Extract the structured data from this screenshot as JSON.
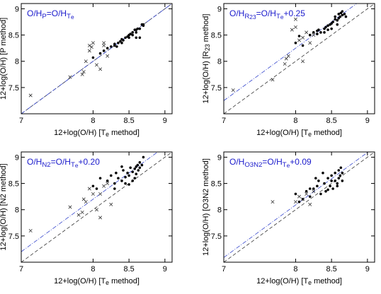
{
  "chart_data": [
    {
      "type": "scatter",
      "annotation": [
        {
          "text": "O/H"
        },
        {
          "text": "P",
          "baseline": "sub"
        },
        {
          "text": "=O/H"
        },
        {
          "text": "T",
          "baseline": "sub"
        },
        {
          "text": "e",
          "baseline": "subsub"
        }
      ],
      "xlabel": [
        {
          "text": "12+log(O/H) [T"
        },
        {
          "text": "e",
          "baseline": "sub"
        },
        {
          "text": " method]"
        }
      ],
      "ylabel": [
        {
          "text": "12+log(O/H) [P method]"
        }
      ],
      "xlim": [
        7,
        9.1
      ],
      "ylim": [
        7,
        9.1
      ],
      "xticks": [
        7,
        8,
        8.5,
        9
      ],
      "yticks": [
        7.5,
        8,
        8.5,
        9
      ],
      "lines": [
        {
          "intercept": 0,
          "style": "dashed",
          "color": "#333333"
        },
        {
          "intercept": 0,
          "style": "dashdot",
          "color": "#3344cc"
        }
      ],
      "series": [
        {
          "marker": "dot",
          "color": "#000000",
          "x": [
            8.0,
            8.1,
            8.15,
            8.2,
            8.25,
            8.3,
            8.3,
            8.35,
            8.38,
            8.4,
            8.42,
            8.45,
            8.48,
            8.5,
            8.52,
            8.55,
            8.55,
            8.58,
            8.6,
            8.6,
            8.62,
            8.65,
            8.65,
            8.68,
            8.7,
            8.5,
            8.4,
            8.33,
            8.6,
            8.7
          ],
          "values": [
            8.07,
            8.15,
            8.2,
            8.25,
            8.28,
            8.3,
            8.33,
            8.35,
            8.38,
            8.42,
            8.4,
            8.45,
            8.47,
            8.5,
            8.52,
            8.55,
            8.5,
            8.6,
            8.6,
            8.55,
            8.62,
            8.62,
            8.45,
            8.7,
            8.7,
            8.45,
            8.35,
            8.28,
            8.45,
            8.68
          ]
        },
        {
          "marker": "cross",
          "color": "#333333",
          "x": [
            7.13,
            7.68,
            7.85,
            7.87,
            7.9,
            7.95,
            7.95,
            8.0,
            8.05,
            8.1,
            8.15,
            8.2,
            7.98,
            8.15
          ],
          "values": [
            7.35,
            7.7,
            7.75,
            7.8,
            8.0,
            8.2,
            8.3,
            8.35,
            7.93,
            7.85,
            8.35,
            8.1,
            8.27,
            8.3
          ]
        }
      ]
    },
    {
      "type": "scatter",
      "annotation": [
        {
          "text": "O/H"
        },
        {
          "text": "R",
          "baseline": "sub"
        },
        {
          "text": "23",
          "baseline": "subsub"
        },
        {
          "text": "=O/H"
        },
        {
          "text": "T",
          "baseline": "sub"
        },
        {
          "text": "e",
          "baseline": "subsub"
        },
        {
          "text": "+0.25"
        }
      ],
      "xlabel": [
        {
          "text": "12+log(O/H) [T"
        },
        {
          "text": "e",
          "baseline": "sub"
        },
        {
          "text": " method]"
        }
      ],
      "ylabel": [
        {
          "text": "12+log(O/H) [R"
        },
        {
          "text": "23",
          "baseline": "sub"
        },
        {
          "text": " method]"
        }
      ],
      "xlim": [
        7,
        9.1
      ],
      "ylim": [
        7,
        9.1
      ],
      "xticks": [
        7,
        8,
        8.5,
        9
      ],
      "yticks": [
        7.5,
        8,
        8.5,
        9
      ],
      "lines": [
        {
          "intercept": 0,
          "style": "dashed",
          "color": "#333333"
        },
        {
          "intercept": 0.25,
          "style": "dashdot",
          "color": "#3344cc"
        }
      ],
      "series": [
        {
          "marker": "dot",
          "color": "#000000",
          "x": [
            8.0,
            8.05,
            8.1,
            8.2,
            8.25,
            8.3,
            8.32,
            8.35,
            8.4,
            8.42,
            8.45,
            8.48,
            8.5,
            8.52,
            8.55,
            8.55,
            8.58,
            8.6,
            8.6,
            8.62,
            8.63,
            8.65,
            8.65,
            8.68,
            8.7,
            8.4,
            8.5,
            8.3,
            8.58,
            8.45
          ],
          "values": [
            8.35,
            8.48,
            8.3,
            8.5,
            8.55,
            8.58,
            8.6,
            8.55,
            8.62,
            8.65,
            8.6,
            8.7,
            8.72,
            8.75,
            8.8,
            8.85,
            8.78,
            8.82,
            8.9,
            8.85,
            8.92,
            8.88,
            8.95,
            8.9,
            8.85,
            8.55,
            8.62,
            8.52,
            8.7,
            8.68
          ]
        },
        {
          "marker": "cross",
          "color": "#333333",
          "x": [
            7.13,
            7.68,
            7.85,
            7.87,
            7.9,
            7.95,
            8.0,
            8.05,
            8.1,
            8.15,
            8.2,
            8.0,
            8.1,
            8.25
          ],
          "values": [
            7.45,
            7.65,
            7.95,
            8.05,
            8.1,
            8.6,
            8.65,
            8.4,
            8.0,
            8.55,
            8.35,
            8.8,
            8.45,
            8.5
          ]
        }
      ]
    },
    {
      "type": "scatter",
      "annotation": [
        {
          "text": "O/H"
        },
        {
          "text": "N2",
          "baseline": "sub"
        },
        {
          "text": "=O/H"
        },
        {
          "text": "T",
          "baseline": "sub"
        },
        {
          "text": "e",
          "baseline": "subsub"
        },
        {
          "text": "+0.20"
        }
      ],
      "xlabel": [
        {
          "text": "12+log(O/H) [T"
        },
        {
          "text": "e",
          "baseline": "sub"
        },
        {
          "text": " method]"
        }
      ],
      "ylabel": [
        {
          "text": "12+log(O/H) [N2 method]"
        }
      ],
      "xlim": [
        7,
        9.1
      ],
      "ylim": [
        7,
        9.1
      ],
      "xticks": [
        7,
        8,
        8.5,
        9
      ],
      "yticks": [
        7.5,
        8,
        8.5,
        9
      ],
      "lines": [
        {
          "intercept": 0,
          "style": "dashed",
          "color": "#333333"
        },
        {
          "intercept": 0.2,
          "style": "dashdot",
          "color": "#3344cc"
        }
      ],
      "series": [
        {
          "marker": "dot",
          "color": "#000000",
          "x": [
            8.0,
            8.05,
            8.1,
            8.2,
            8.25,
            8.3,
            8.32,
            8.35,
            8.4,
            8.42,
            8.45,
            8.48,
            8.5,
            8.52,
            8.55,
            8.55,
            8.58,
            8.6,
            8.6,
            8.62,
            8.63,
            8.65,
            8.65,
            8.68,
            8.7,
            8.4,
            8.5,
            8.3,
            8.58,
            8.45
          ],
          "values": [
            8.45,
            8.4,
            8.6,
            8.55,
            8.65,
            8.5,
            8.7,
            8.6,
            8.55,
            8.75,
            8.62,
            8.7,
            8.65,
            8.8,
            8.72,
            8.55,
            8.78,
            8.82,
            8.68,
            8.85,
            8.75,
            8.9,
            8.8,
            8.85,
            9.0,
            8.82,
            8.48,
            8.4,
            8.6,
            8.5
          ]
        },
        {
          "marker": "cross",
          "color": "#333333",
          "x": [
            7.13,
            7.68,
            7.85,
            7.87,
            7.9,
            7.95,
            8.0,
            8.05,
            8.1,
            8.15,
            8.2,
            7.8,
            8.1,
            8.25
          ],
          "values": [
            7.6,
            8.05,
            7.95,
            8.2,
            8.15,
            8.4,
            8.3,
            8.0,
            7.85,
            8.45,
            8.5,
            7.9,
            8.3,
            8.1
          ]
        }
      ]
    },
    {
      "type": "scatter",
      "annotation": [
        {
          "text": "O/H"
        },
        {
          "text": "O3N2",
          "baseline": "sub"
        },
        {
          "text": "=O/H"
        },
        {
          "text": "T",
          "baseline": "sub"
        },
        {
          "text": "e",
          "baseline": "subsub"
        },
        {
          "text": "+0.09"
        }
      ],
      "xlabel": [
        {
          "text": "12+log(O/H) [T"
        },
        {
          "text": "e",
          "baseline": "sub"
        },
        {
          "text": " method]"
        }
      ],
      "ylabel": [
        {
          "text": "12+log(O/H) [O3N2 method]"
        }
      ],
      "xlim": [
        7,
        9.1
      ],
      "ylim": [
        7,
        9.1
      ],
      "xticks": [
        7,
        8,
        8.5,
        9
      ],
      "yticks": [
        7.5,
        8,
        8.5,
        9
      ],
      "lines": [
        {
          "intercept": 0,
          "style": "dashed",
          "color": "#333333"
        },
        {
          "intercept": 0.09,
          "style": "dashdot",
          "color": "#3344cc"
        }
      ],
      "series": [
        {
          "marker": "dot",
          "color": "#000000",
          "x": [
            8.0,
            8.05,
            8.1,
            8.15,
            8.2,
            8.25,
            8.3,
            8.32,
            8.35,
            8.4,
            8.42,
            8.45,
            8.48,
            8.5,
            8.52,
            8.55,
            8.55,
            8.58,
            8.6,
            8.6,
            8.62,
            8.63,
            8.65,
            8.65,
            8.38,
            8.45,
            8.5,
            8.28,
            8.58,
            8.2
          ],
          "values": [
            8.3,
            8.15,
            8.2,
            8.35,
            8.25,
            8.4,
            8.45,
            8.55,
            8.3,
            8.5,
            8.35,
            8.6,
            8.45,
            8.65,
            8.4,
            8.55,
            8.7,
            8.5,
            8.75,
            8.6,
            8.65,
            8.8,
            8.7,
            8.55,
            8.7,
            8.38,
            8.55,
            8.6,
            8.45,
            8.4
          ]
        },
        {
          "marker": "cross",
          "color": "#333333",
          "x": [
            7.68,
            8.0,
            8.05,
            8.1,
            8.15,
            8.2,
            8.25
          ],
          "values": [
            8.15,
            8.15,
            8.25,
            8.2,
            8.3,
            8.1,
            8.35
          ]
        }
      ]
    }
  ]
}
